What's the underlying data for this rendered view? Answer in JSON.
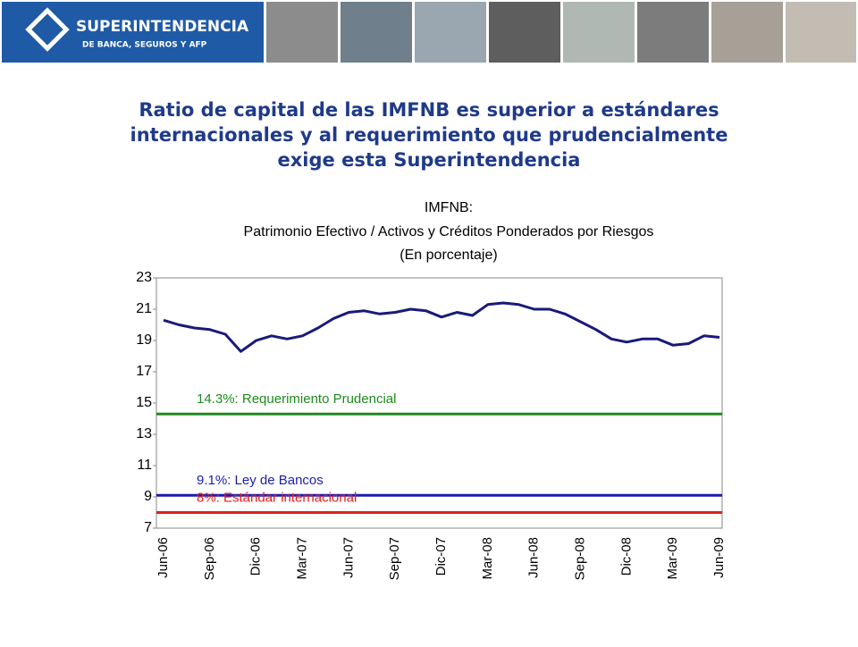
{
  "header": {
    "logo_title": "SUPERINTENDENCIA",
    "logo_subtitle": "DE BANCA, SEGUROS Y AFP"
  },
  "slide_title": [
    "Ratio de capital de las IMFNB es superior a estándares",
    "internacionales y al requerimiento que prudencialmente",
    "exige esta Superintendencia"
  ],
  "chart_data": {
    "type": "line",
    "title": "IMFNB:",
    "subtitle": "Patrimonio Efectivo / Activos y Créditos Ponderados por Riesgos",
    "note": "(En porcentaje)",
    "categories": [
      "Jun-06",
      null,
      null,
      "Sep-06",
      null,
      null,
      "Dic-06",
      null,
      null,
      "Mar-07",
      null,
      null,
      "Jun-07",
      null,
      null,
      "Sep-07",
      null,
      null,
      "Dic-07",
      null,
      null,
      "Mar-08",
      null,
      null,
      "Jun-08",
      null,
      null,
      "Sep-08",
      null,
      null,
      "Dic-08",
      null,
      null,
      "Mar-09",
      null,
      null,
      "Jun-09"
    ],
    "values": [
      20.3,
      20.0,
      19.8,
      19.7,
      19.4,
      18.3,
      19.0,
      19.3,
      19.1,
      19.3,
      19.8,
      20.4,
      20.8,
      20.9,
      20.7,
      20.8,
      21.0,
      20.9,
      20.5,
      20.8,
      20.6,
      21.3,
      21.4,
      21.3,
      21.0,
      21.0,
      20.7,
      20.2,
      19.7,
      19.1,
      18.9,
      19.1,
      19.1,
      18.7,
      18.8,
      19.3,
      19.2
    ],
    "color": "#1a1a7a",
    "ylim": [
      7,
      23
    ],
    "yticks": [
      7,
      9,
      11,
      13,
      15,
      17,
      19,
      21,
      23
    ],
    "reference_lines": [
      {
        "value": 14.3,
        "label": "14.3%: Requerimiento Prudencial",
        "color": "#1e8a1e"
      },
      {
        "value": 9.1,
        "label": "9.1%: Ley de Bancos",
        "color": "#1c1cb0"
      },
      {
        "value": 8,
        "label": "8%: Estándar internacional",
        "color": "#e0201c"
      }
    ]
  }
}
